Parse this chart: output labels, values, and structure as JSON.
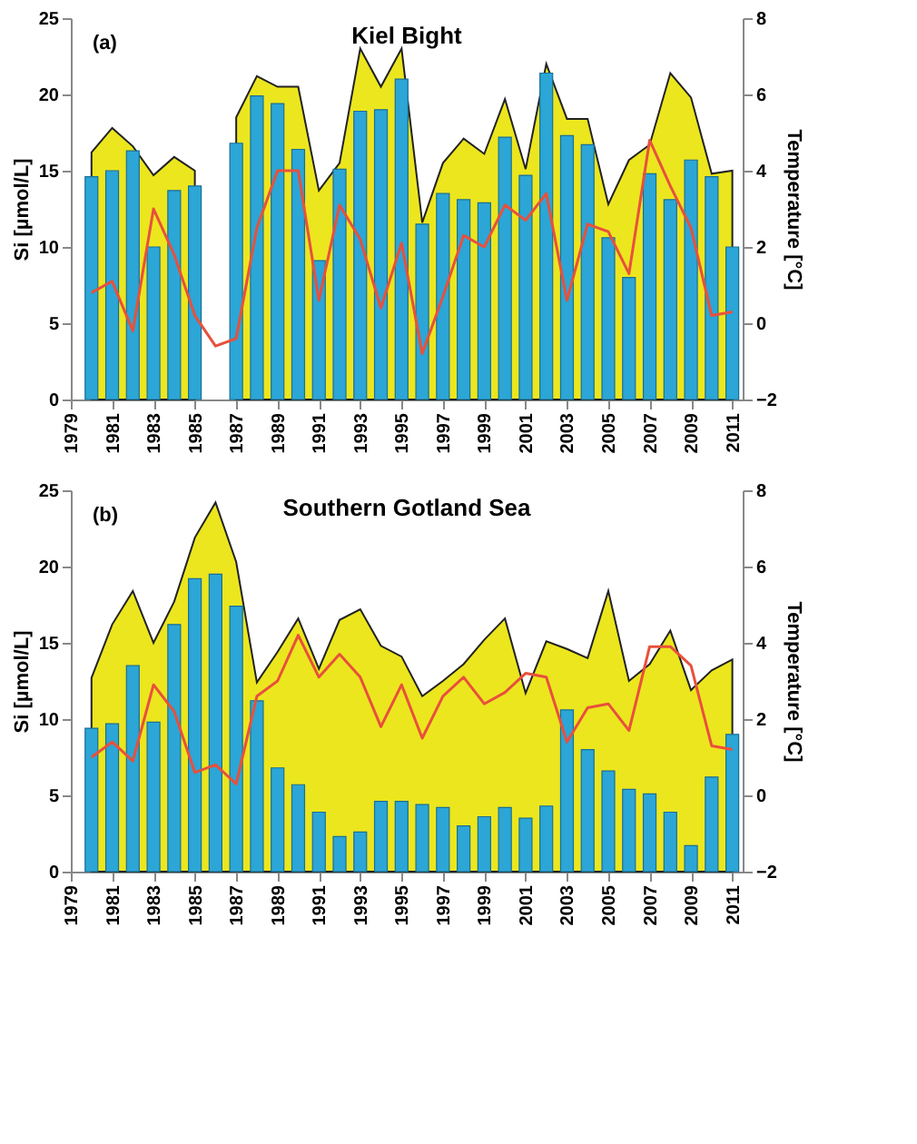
{
  "chart_data": [
    {
      "type": "bar",
      "title": "Kiel Bight",
      "annotations": [
        "(a)"
      ],
      "ylabel": "Si [µmol/L]",
      "y2label": "Temperature [°C]",
      "x": [
        1980,
        1981,
        1982,
        1983,
        1984,
        1985,
        1986,
        1987,
        1988,
        1989,
        1990,
        1991,
        1992,
        1993,
        1994,
        1995,
        1996,
        1997,
        1998,
        1999,
        2000,
        2001,
        2002,
        2003,
        2004,
        2005,
        2006,
        2007,
        2008,
        2009,
        2010,
        2011
      ],
      "xlim": [
        1979,
        2011.5
      ],
      "xticks": [
        1979,
        1981,
        1983,
        1985,
        1987,
        1989,
        1991,
        1993,
        1995,
        1997,
        1999,
        2001,
        2003,
        2005,
        2007,
        2009,
        2011
      ],
      "ylim": [
        0,
        25
      ],
      "yticks": [
        0,
        5,
        10,
        15,
        20,
        25
      ],
      "y2lim": [
        -2,
        8
      ],
      "y2ticks": [
        -2,
        0,
        2,
        4,
        6,
        8
      ],
      "series": [
        {
          "type": "area",
          "color": "#ece61e",
          "values": [
            16.2,
            17.8,
            16.6,
            14.7,
            15.9,
            15.0,
            null,
            18.5,
            21.2,
            20.5,
            20.5,
            13.7,
            15.5,
            23.0,
            20.5,
            23.0,
            11.6,
            15.5,
            17.1,
            16.1,
            19.7,
            15.1,
            22.0,
            18.4,
            18.4,
            12.8,
            15.7,
            16.7,
            21.4,
            19.8,
            14.8,
            15.0
          ]
        },
        {
          "color": "#2ba6d6",
          "values": [
            14.6,
            15.0,
            16.3,
            10.0,
            13.7,
            14.0,
            null,
            16.8,
            19.9,
            19.4,
            16.4,
            9.1,
            15.1,
            18.9,
            19.0,
            21.0,
            11.5,
            13.5,
            13.1,
            12.9,
            17.2,
            14.7,
            21.4,
            17.3,
            16.7,
            10.6,
            8.0,
            14.8,
            13.1,
            15.7,
            14.6,
            10.0
          ]
        },
        {
          "type": "line",
          "axis": "y2",
          "color": "#e8503c",
          "values": [
            0.8,
            1.1,
            -0.2,
            3.0,
            1.8,
            0.2,
            -0.6,
            -0.4,
            2.5,
            4.0,
            4.0,
            0.6,
            3.1,
            2.2,
            0.4,
            2.1,
            -0.8,
            0.7,
            2.3,
            2.0,
            3.1,
            2.7,
            3.4,
            0.6,
            2.6,
            2.4,
            1.3,
            4.8,
            3.6,
            2.5,
            0.2,
            0.3
          ]
        }
      ]
    },
    {
      "type": "bar",
      "title": "Southern Gotland Sea",
      "annotations": [
        "(b)"
      ],
      "ylabel": "Si [µmol/L]",
      "y2label": "Temperature [°C]",
      "x": [
        1980,
        1981,
        1982,
        1983,
        1984,
        1985,
        1986,
        1987,
        1988,
        1989,
        1990,
        1991,
        1992,
        1993,
        1994,
        1995,
        1996,
        1997,
        1998,
        1999,
        2000,
        2001,
        2002,
        2003,
        2004,
        2005,
        2006,
        2007,
        2008,
        2009,
        2010,
        2011
      ],
      "xlim": [
        1979,
        2011.5
      ],
      "xticks": [
        1979,
        1981,
        1983,
        1985,
        1987,
        1989,
        1991,
        1993,
        1995,
        1997,
        1999,
        2001,
        2003,
        2005,
        2007,
        2009,
        2011
      ],
      "ylim": [
        0,
        25
      ],
      "yticks": [
        0,
        5,
        10,
        15,
        20,
        25
      ],
      "y2lim": [
        -2,
        8
      ],
      "y2ticks": [
        -2,
        0,
        2,
        4,
        6,
        8
      ],
      "series": [
        {
          "type": "area",
          "color": "#ece61e",
          "values": [
            12.7,
            16.2,
            18.4,
            15.0,
            17.7,
            21.9,
            24.2,
            20.3,
            12.4,
            14.4,
            16.6,
            13.3,
            16.5,
            17.2,
            14.8,
            14.1,
            11.5,
            12.5,
            13.6,
            15.2,
            16.6,
            11.7,
            15.1,
            14.6,
            14.0,
            18.4,
            12.5,
            13.6,
            15.8,
            11.9,
            13.2,
            13.9
          ]
        },
        {
          "color": "#2ba6d6",
          "values": [
            9.4,
            9.7,
            13.5,
            9.8,
            16.2,
            19.2,
            19.5,
            17.4,
            11.2,
            6.8,
            5.7,
            3.9,
            2.3,
            2.6,
            4.6,
            4.6,
            4.4,
            4.2,
            3.0,
            3.6,
            4.2,
            3.5,
            4.3,
            10.6,
            8.0,
            6.6,
            5.4,
            5.1,
            3.9,
            1.7,
            6.2,
            9.0
          ]
        },
        {
          "type": "line",
          "axis": "y2",
          "color": "#e8503c",
          "values": [
            1.0,
            1.4,
            0.9,
            2.9,
            2.2,
            0.6,
            0.8,
            0.3,
            2.6,
            3.0,
            4.2,
            3.1,
            3.7,
            3.1,
            1.8,
            2.9,
            1.5,
            2.6,
            3.1,
            2.4,
            2.7,
            3.2,
            3.1,
            1.4,
            2.3,
            2.4,
            1.7,
            3.9,
            3.9,
            3.4,
            1.3,
            1.2
          ]
        }
      ]
    }
  ]
}
